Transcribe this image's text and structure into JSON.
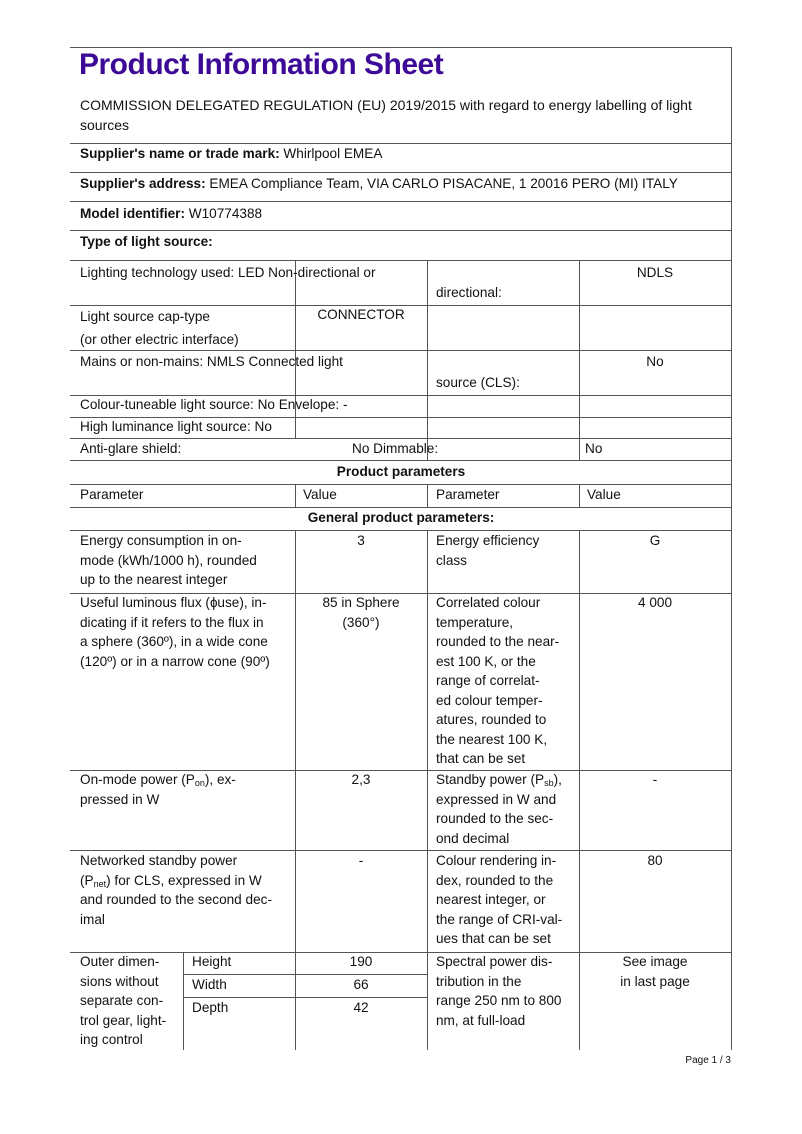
{
  "title": "Product Information Sheet",
  "title_color": "#3c0a96",
  "subtitle": "COMMISSION DELEGATED REGULATION (EU) 2019/2015 with regard to energy labelling of light\nsources",
  "supplier_name": {
    "label": "Supplier's name or trade mark:",
    "value": " Whirlpool EMEA"
  },
  "supplier_address": {
    "label": "Supplier's address:",
    "value": " EMEA Compliance Team, VIA CARLO PISACANE, 1 20016 PERO (MI) ITALY"
  },
  "model": {
    "label": "Model identifier:",
    "value": " W10774388"
  },
  "type_heading": "Type of light source:",
  "type_rows": {
    "tech": "Lighting technology used: LED Non-directional  or",
    "tech_cont": "directional:",
    "tech_val": "NDLS",
    "cap": "Light source cap-type\n(or other electric interface)",
    "cap_val": "CONNECTOR",
    "mains": "Mains or non-mains: NMLS Connected  light",
    "mains_cont": "source (CLS):",
    "mains_val": "No",
    "colour": "Colour-tuneable light source: No Envelope: -",
    "high_lum": "High luminance light source: No",
    "glare": "Anti-glare shield:",
    "glare_mid": "No Dimmable:",
    "dimmable_val": "No"
  },
  "product_parameters": "Product parameters",
  "headers": [
    "Parameter",
    "Value",
    "Parameter",
    "Value"
  ],
  "general_parameters": "General product parameters:",
  "params": {
    "energy": "Energy consumption in on-\nmode (kWh/1000 h), rounded\nup to the nearest integer",
    "energy_val": "3",
    "eff": "Energy efficiency\nclass",
    "eff_val": "G",
    "flux": "Useful luminous flux (ɸuse), in-\ndicating if it refers to the flux in\na sphere (360º), in a wide cone\n(120º) or in a narrow cone (90º)",
    "flux_val": "85 in Sphere\n(360°)",
    "cct": "Correlated colour\ntemperature,\nrounded to the near-\nest 100 K, or the\nrange of correlat-\ned colour temper-\natures, rounded to\nthe nearest 100 K,\nthat can be set",
    "cct_val": "4 000",
    "pon_a": "On-mode power (P",
    "pon_sub": "on",
    "pon_b": "), ex-\npressed in W",
    "pon_val": "2,3",
    "psb_a": "Standby power (P",
    "psb_sub": "sb",
    "psb_b": "),\nexpressed in W and\nrounded to the sec-\nond decimal",
    "psb_val": "-",
    "pnet_a": "Networked standby power\n(P",
    "pnet_sub": "net",
    "pnet_b": ") for CLS, expressed in W\nand rounded to the second dec-\nimal",
    "pnet_val": "-",
    "cri": "Colour rendering in-\ndex, rounded to the\nnearest integer, or\nthe range of CRI-val-\nues that can be set",
    "cri_val": "80",
    "dims": "Outer dimen-\nsions without\nseparate con-\ntrol gear, light-\ning control",
    "dims_rows": [
      {
        "label": "Height",
        "value": "190"
      },
      {
        "label": "Width",
        "value": "66"
      },
      {
        "label": "Depth",
        "value": "42"
      }
    ],
    "spd": "Spectral power dis-\ntribution in the\nrange 250 nm to 800\nnm, at full-load",
    "spd_val": "See image\nin last page"
  },
  "page_number": "Page 1 / 3"
}
